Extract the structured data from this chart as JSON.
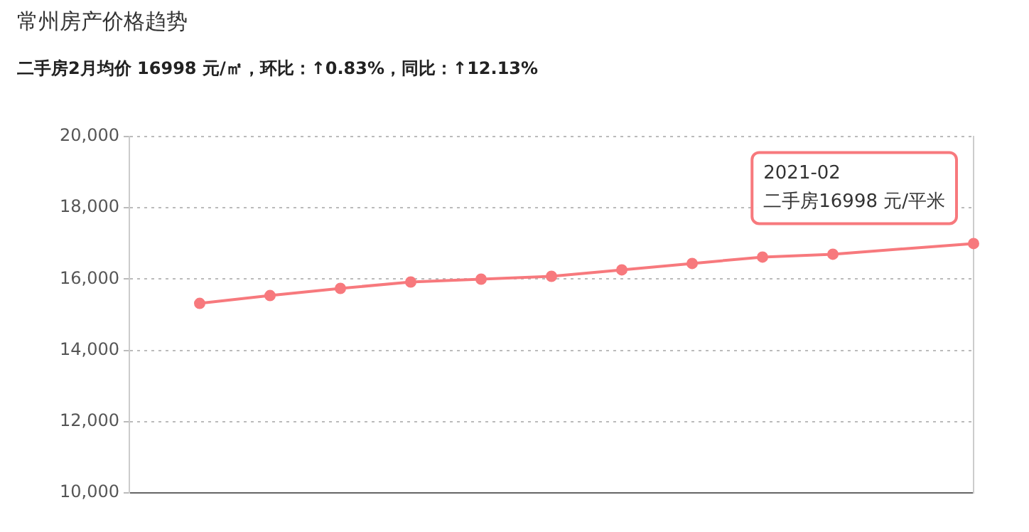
{
  "chart_data": {
    "type": "line",
    "title": "常州房产价格趋势",
    "subtitle": "二手房2月均价 16998 元/㎡，环比：↑0.83%，同比：↑12.13%",
    "categories": [
      null,
      null,
      null,
      null,
      null,
      null,
      null,
      null,
      null,
      null,
      null,
      null,
      null
    ],
    "series": [
      {
        "color": "#f7797d",
        "values": [
          null,
          15320,
          15540,
          15740,
          15920,
          16000,
          16080,
          16260,
          16440,
          16620,
          16700,
          null,
          16998
        ]
      }
    ],
    "ylim": [
      10000,
      20000
    ],
    "yticks": [
      {
        "value": 10000,
        "label": "10,000"
      },
      {
        "value": 12000,
        "label": "12,000"
      },
      {
        "value": 14000,
        "label": "14,000"
      },
      {
        "value": 16000,
        "label": "16,000"
      },
      {
        "value": 18000,
        "label": "18,000"
      },
      {
        "value": 20000,
        "label": "20,000"
      }
    ],
    "grid": "y",
    "legend": false,
    "marker": "circle",
    "line_style": "solid",
    "annotations": [
      "2021-02\n二手房16998 元/平米"
    ]
  }
}
